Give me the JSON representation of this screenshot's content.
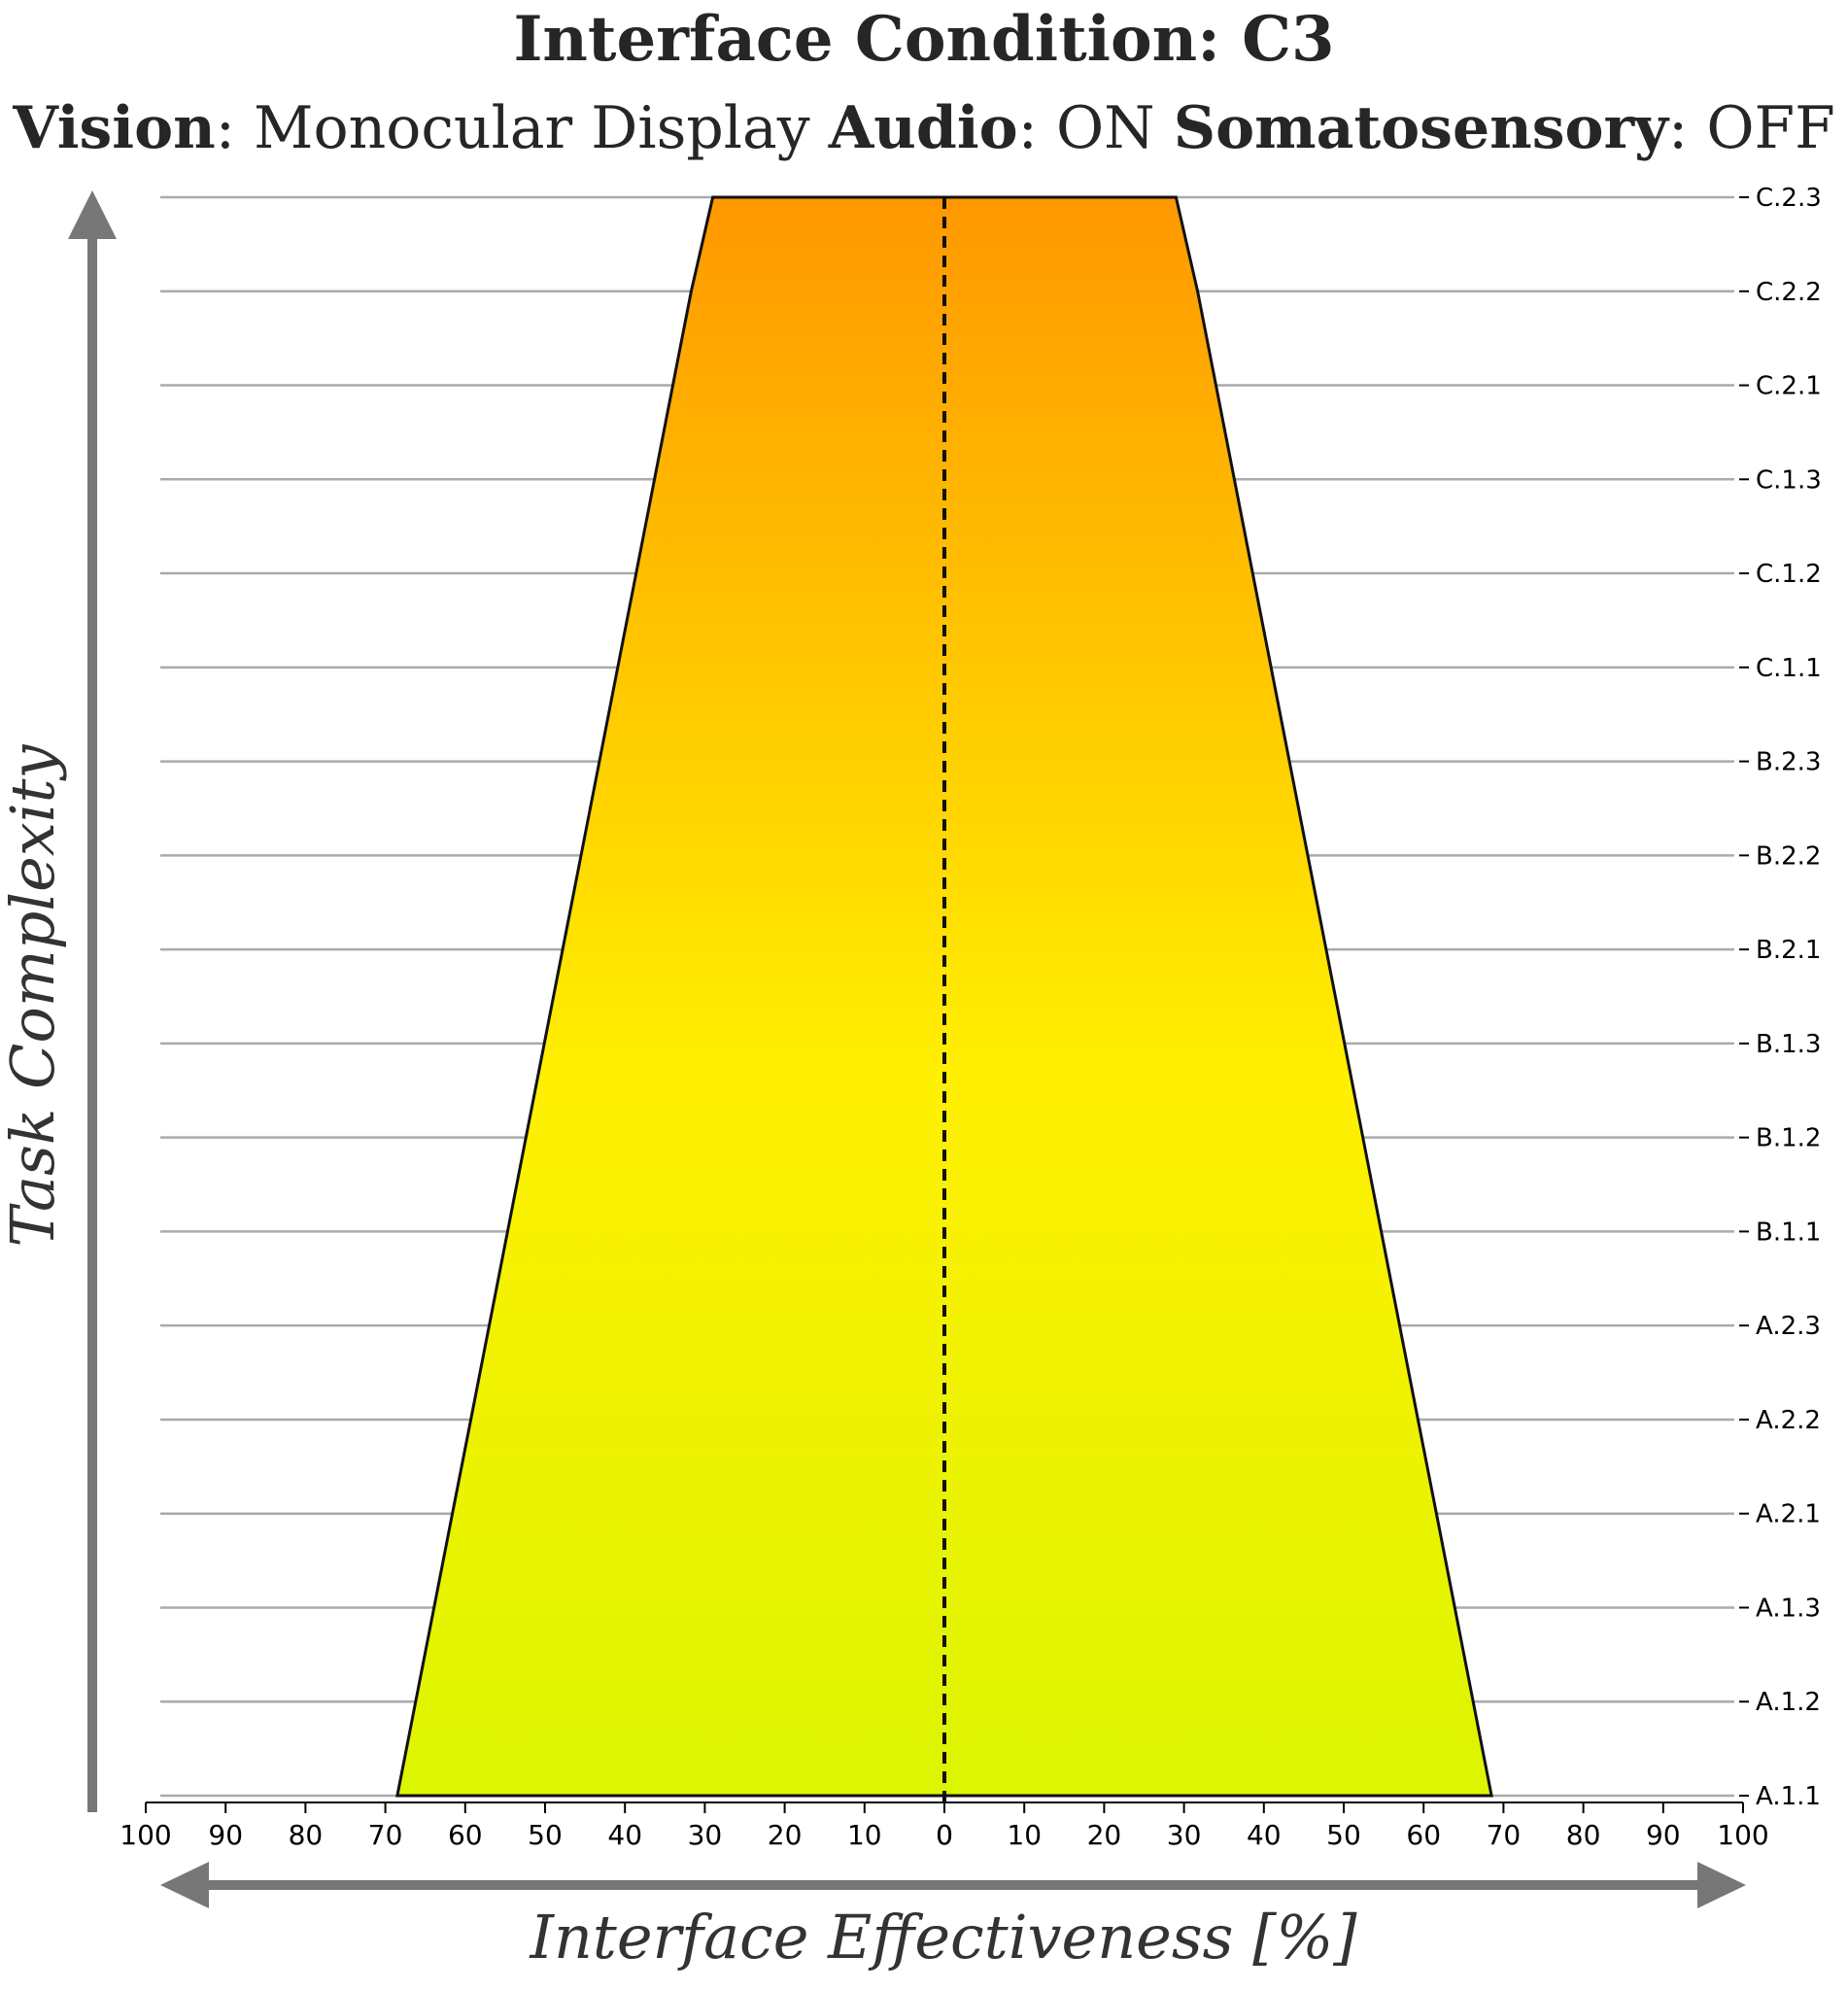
{
  "chart_data": {
    "type": "area",
    "title": "Interface Condition: C3",
    "subtitle": {
      "vision_label": "Vision",
      "vision_value": ": Monocular Display ",
      "audio_label": "Audio",
      "audio_value": ": ON ",
      "somato_label": "Somatosensory",
      "somato_value": ": OFF"
    },
    "xlabel": "Interface Effectiveness [%]",
    "ylabel": "Task Complexity",
    "x_ticks": [
      "100",
      "90",
      "80",
      "70",
      "60",
      "50",
      "40",
      "30",
      "20",
      "10",
      "0",
      "0",
      "10",
      "20",
      "30",
      "40",
      "50",
      "60",
      "70",
      "80",
      "90",
      "100"
    ],
    "x_tick_values": [
      -100,
      -90,
      -80,
      -70,
      -60,
      -50,
      -40,
      -30,
      -20,
      -10,
      0,
      0,
      10,
      20,
      30,
      40,
      50,
      60,
      70,
      80,
      90,
      100
    ],
    "xlim": [
      -100,
      100
    ],
    "categories": [
      "A.1.1",
      "A.1.2",
      "A.1.3",
      "A.2.1",
      "A.2.2",
      "A.2.3",
      "B.1.1",
      "B.1.2",
      "B.1.3",
      "B.2.1",
      "B.2.2",
      "B.2.3",
      "C.1.1",
      "C.1.2",
      "C.1.3",
      "C.2.1",
      "C.2.2",
      "C.2.3"
    ],
    "series": [
      {
        "values": [
          68.5,
          66.2,
          63.9,
          61.6,
          59.3,
          57.0,
          54.7,
          52.4,
          50.1,
          47.8,
          45.5,
          43.2,
          40.9,
          38.6,
          36.3,
          34.0,
          31.7,
          29.0
        ]
      }
    ],
    "grid": true,
    "center_line": "dashed",
    "colors": {
      "bottom": "#dcf500",
      "middle": "#fff000",
      "top": "#ff9800",
      "outline": "#111111",
      "grid": "#aaaaaa",
      "arrow": "#777777"
    }
  }
}
